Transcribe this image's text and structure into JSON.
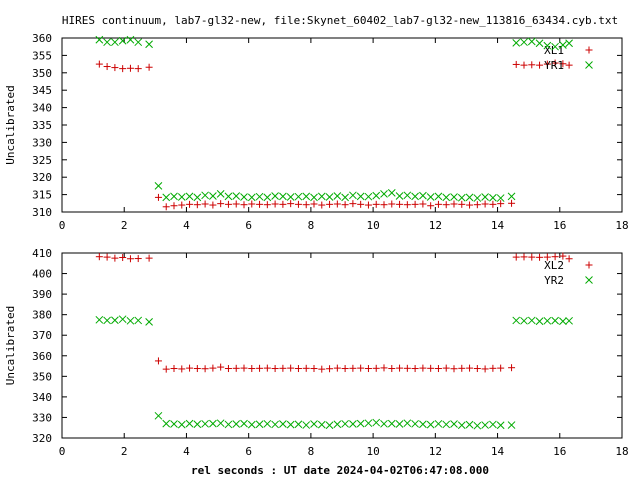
{
  "chart_data": [
    {
      "type": "scatter",
      "title": "HIRES continuum, lab7-gl32-new, file:Skynet_60402_lab7-gl32-new_113816_63434.cyb.txt",
      "xlabel": "",
      "ylabel": "Uncalibrated",
      "xlim": [
        0,
        18
      ],
      "ylim": [
        310,
        360
      ],
      "x_ticks": [
        "0",
        "2",
        "4",
        "6",
        "8",
        "10",
        "12",
        "14",
        "16",
        "18"
      ],
      "y_ticks": [
        "310",
        "315",
        "320",
        "325",
        "330",
        "335",
        "340",
        "345",
        "350",
        "355",
        "360"
      ],
      "legend_position": "top-right",
      "grid": false,
      "series": [
        {
          "name": "XL1",
          "marker": "plus",
          "color": "#cc0000",
          "x": [
            1.2,
            1.45,
            1.7,
            1.95,
            2.2,
            2.45,
            2.8,
            3.1,
            3.35,
            3.6,
            3.85,
            4.1,
            4.35,
            4.6,
            4.85,
            5.1,
            5.35,
            5.6,
            5.85,
            6.1,
            6.35,
            6.6,
            6.85,
            7.1,
            7.35,
            7.6,
            7.85,
            8.1,
            8.35,
            8.6,
            8.85,
            9.1,
            9.35,
            9.6,
            9.85,
            10.1,
            10.35,
            10.6,
            10.85,
            11.1,
            11.35,
            11.6,
            11.85,
            12.1,
            12.35,
            12.6,
            12.85,
            13.1,
            13.35,
            13.6,
            13.85,
            14.1,
            14.45,
            14.6,
            14.85,
            15.1,
            15.35,
            15.6,
            15.85,
            16.1,
            16.3
          ],
          "y": [
            352.5,
            351.8,
            351.5,
            351.2,
            351.3,
            351.2,
            351.6,
            314.2,
            311.5,
            311.8,
            312.0,
            312.2,
            312.1,
            312.3,
            312.0,
            312.4,
            312.2,
            312.3,
            312.1,
            312.3,
            312.2,
            312.1,
            312.3,
            312.2,
            312.4,
            312.2,
            312.1,
            312.3,
            312.0,
            312.2,
            312.3,
            312.1,
            312.4,
            312.2,
            312.0,
            312.2,
            312.1,
            312.3,
            312.2,
            312.1,
            312.2,
            312.3,
            311.8,
            312.2,
            312.1,
            312.3,
            312.2,
            312.0,
            312.1,
            312.3,
            312.2,
            312.4,
            312.5,
            352.4,
            352.2,
            352.3,
            352.2,
            352.5,
            352.8,
            352.6,
            352.2
          ]
        },
        {
          "name": "YR1",
          "marker": "cross",
          "color": "#00aa00",
          "x": [
            1.2,
            1.45,
            1.7,
            1.95,
            2.2,
            2.45,
            2.8,
            3.1,
            3.35,
            3.6,
            3.85,
            4.1,
            4.35,
            4.6,
            4.85,
            5.1,
            5.35,
            5.6,
            5.85,
            6.1,
            6.35,
            6.6,
            6.85,
            7.1,
            7.35,
            7.6,
            7.85,
            8.1,
            8.35,
            8.6,
            8.85,
            9.1,
            9.35,
            9.6,
            9.85,
            10.1,
            10.35,
            10.6,
            10.85,
            11.1,
            11.35,
            11.6,
            11.85,
            12.1,
            12.35,
            12.6,
            12.85,
            13.1,
            13.35,
            13.6,
            13.85,
            14.1,
            14.45,
            14.6,
            14.85,
            15.1,
            15.35,
            15.6,
            15.85,
            16.1,
            16.3
          ],
          "y": [
            359.5,
            358.8,
            358.8,
            359.2,
            359.5,
            358.8,
            358.2,
            317.5,
            314.2,
            314.5,
            314.3,
            314.5,
            314.2,
            314.8,
            314.6,
            315.2,
            314.5,
            314.6,
            314.3,
            314.2,
            314.4,
            314.2,
            314.6,
            314.5,
            314.3,
            314.4,
            314.5,
            314.2,
            314.5,
            314.3,
            314.6,
            314.2,
            314.8,
            314.5,
            314.4,
            314.7,
            315.2,
            315.5,
            314.6,
            314.8,
            314.5,
            314.7,
            314.3,
            314.5,
            314.2,
            314.3,
            314.1,
            314.2,
            314.0,
            314.3,
            314.1,
            314.0,
            314.5,
            358.6,
            358.8,
            359.0,
            358.5,
            357.8,
            357.5,
            358.0,
            358.5
          ]
        }
      ]
    },
    {
      "type": "scatter",
      "title": "",
      "xlabel": "rel seconds : UT date 2024-04-02T06:47:08.000",
      "ylabel": "Uncalibrated",
      "xlim": [
        0,
        18
      ],
      "ylim": [
        320,
        410
      ],
      "x_ticks": [
        "0",
        "2",
        "4",
        "6",
        "8",
        "10",
        "12",
        "14",
        "16",
        "18"
      ],
      "y_ticks": [
        "320",
        "330",
        "340",
        "350",
        "360",
        "370",
        "380",
        "390",
        "400",
        "410"
      ],
      "legend_position": "top-right",
      "grid": false,
      "series": [
        {
          "name": "XL2",
          "marker": "plus",
          "color": "#cc0000",
          "x": [
            1.2,
            1.45,
            1.7,
            1.95,
            2.2,
            2.45,
            2.8,
            3.1,
            3.35,
            3.6,
            3.85,
            4.1,
            4.35,
            4.6,
            4.85,
            5.1,
            5.35,
            5.6,
            5.85,
            6.1,
            6.35,
            6.6,
            6.85,
            7.1,
            7.35,
            7.6,
            7.85,
            8.1,
            8.35,
            8.6,
            8.85,
            9.1,
            9.35,
            9.6,
            9.85,
            10.1,
            10.35,
            10.6,
            10.85,
            11.1,
            11.35,
            11.6,
            11.85,
            12.1,
            12.35,
            12.6,
            12.85,
            13.1,
            13.35,
            13.6,
            13.85,
            14.1,
            14.45,
            14.6,
            14.85,
            15.1,
            15.35,
            15.6,
            15.85,
            16.1,
            16.3
          ],
          "y": [
            408.2,
            408.0,
            407.5,
            407.8,
            407.2,
            407.3,
            407.5,
            357.5,
            353.5,
            353.8,
            353.6,
            354.0,
            353.8,
            353.7,
            354.0,
            354.5,
            353.8,
            353.9,
            354.0,
            353.8,
            353.9,
            354.0,
            353.8,
            353.9,
            354.0,
            353.8,
            353.9,
            353.8,
            353.5,
            353.7,
            354.0,
            353.8,
            353.9,
            354.0,
            353.8,
            353.9,
            354.1,
            353.8,
            354.0,
            353.9,
            353.8,
            354.0,
            353.9,
            353.8,
            354.0,
            353.7,
            353.9,
            354.0,
            353.8,
            353.6,
            353.9,
            354.0,
            354.2,
            408.0,
            408.1,
            408.0,
            407.9,
            408.0,
            408.2,
            408.5,
            407.2
          ]
        },
        {
          "name": "YR2",
          "marker": "cross",
          "color": "#00aa00",
          "x": [
            1.2,
            1.45,
            1.7,
            1.95,
            2.2,
            2.45,
            2.8,
            3.1,
            3.35,
            3.6,
            3.85,
            4.1,
            4.35,
            4.6,
            4.85,
            5.1,
            5.35,
            5.6,
            5.85,
            6.1,
            6.35,
            6.6,
            6.85,
            7.1,
            7.35,
            7.6,
            7.85,
            8.1,
            8.35,
            8.6,
            8.85,
            9.1,
            9.35,
            9.6,
            9.85,
            10.1,
            10.35,
            10.6,
            10.85,
            11.1,
            11.35,
            11.6,
            11.85,
            12.1,
            12.35,
            12.6,
            12.85,
            13.1,
            13.35,
            13.6,
            13.85,
            14.1,
            14.45,
            14.6,
            14.85,
            15.1,
            15.35,
            15.6,
            15.85,
            16.1,
            16.3
          ],
          "y": [
            377.5,
            377.2,
            377.3,
            377.8,
            377.0,
            377.2,
            376.5,
            330.8,
            327.0,
            326.8,
            326.5,
            327.0,
            326.7,
            326.9,
            327.0,
            327.2,
            326.6,
            326.8,
            327.0,
            326.5,
            326.7,
            326.9,
            326.6,
            326.8,
            326.5,
            326.7,
            326.3,
            326.8,
            326.5,
            326.2,
            326.7,
            326.9,
            326.8,
            327.0,
            327.2,
            327.5,
            326.9,
            327.0,
            326.8,
            327.2,
            326.9,
            326.7,
            326.5,
            326.9,
            326.6,
            326.8,
            326.2,
            326.5,
            326.0,
            326.3,
            326.6,
            326.2,
            326.3,
            377.2,
            377.0,
            377.2,
            376.8,
            377.0,
            377.1,
            376.8,
            377.0
          ]
        }
      ]
    }
  ]
}
